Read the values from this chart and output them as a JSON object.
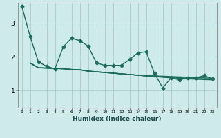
{
  "xlabel": "Humidex (Indice chaleur)",
  "background_color": "#ceeaea",
  "grid_color": "#aacccc",
  "line_color": "#1a6b5a",
  "xlim": [
    -0.5,
    23.5
  ],
  "ylim": [
    0.5,
    3.6
  ],
  "yticks": [
    1,
    2,
    3
  ],
  "xticks": [
    0,
    1,
    2,
    3,
    4,
    5,
    6,
    7,
    8,
    9,
    10,
    11,
    12,
    13,
    14,
    15,
    16,
    17,
    18,
    19,
    20,
    21,
    22,
    23
  ],
  "series": [
    [
      3.5,
      2.6,
      1.85,
      1.72,
      1.65,
      2.3,
      2.55,
      2.48,
      2.32,
      1.82,
      1.75,
      1.75,
      1.75,
      1.92,
      2.12,
      2.15,
      1.52,
      1.08,
      1.38,
      1.32,
      1.38,
      1.38,
      1.45,
      1.35
    ],
    [
      null,
      1.82,
      1.68,
      1.67,
      1.66,
      1.65,
      1.63,
      1.62,
      1.58,
      1.56,
      1.54,
      1.52,
      1.5,
      1.48,
      1.46,
      1.44,
      1.42,
      1.4,
      1.38,
      1.37,
      1.35,
      1.34,
      1.33,
      1.32
    ],
    [
      null,
      1.82,
      1.68,
      1.67,
      1.66,
      1.65,
      1.63,
      1.62,
      1.58,
      1.56,
      1.54,
      1.52,
      1.5,
      1.48,
      1.46,
      1.44,
      1.44,
      1.43,
      1.42,
      1.41,
      1.4,
      1.39,
      1.38,
      1.37
    ],
    [
      null,
      1.82,
      1.68,
      1.67,
      1.66,
      1.65,
      1.63,
      1.62,
      1.58,
      1.56,
      1.54,
      1.52,
      1.5,
      1.48,
      1.46,
      1.44,
      1.43,
      1.41,
      1.4,
      1.39,
      1.37,
      1.36,
      1.35,
      1.34
    ]
  ],
  "marker": "D",
  "markersize": 2.5,
  "linewidth": 1.0,
  "xlabel_fontsize": 6.5,
  "xtick_fontsize": 4.5,
  "ytick_fontsize": 6.5
}
